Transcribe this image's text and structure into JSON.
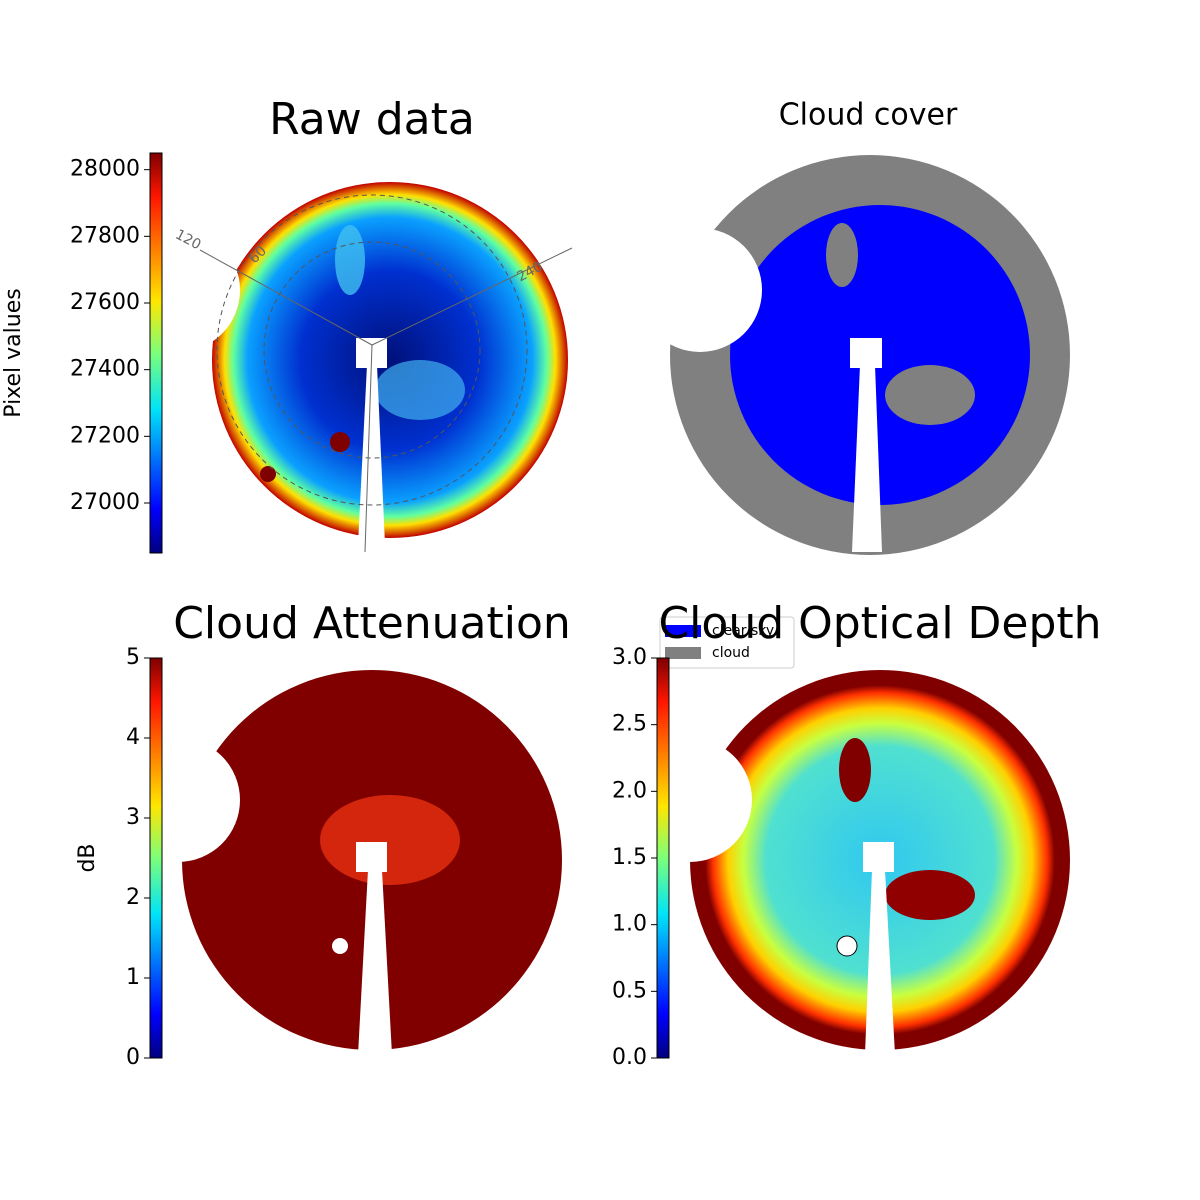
{
  "chart_data": [
    {
      "type": "image",
      "title": "Raw data",
      "ylabel": "Pixel values",
      "colormap": "jet",
      "ylim": [
        26850,
        28050
      ],
      "yticks": [
        27000,
        27200,
        27400,
        27600,
        27800,
        28000
      ],
      "annotations": [
        "120",
        "60",
        "240"
      ]
    },
    {
      "type": "image",
      "title": "Cloud cover",
      "legend": [
        {
          "name": "clear sky",
          "color": "#0000ff"
        },
        {
          "name": "cloud",
          "color": "#808080"
        }
      ]
    },
    {
      "type": "image",
      "title": "Cloud Attenuation",
      "ylabel": "dB",
      "colormap": "jet",
      "ylim": [
        0,
        5
      ],
      "yticks": [
        0,
        1,
        2,
        3,
        4,
        5
      ]
    },
    {
      "type": "image",
      "title": "Cloud Optical Depth",
      "colormap": "jet",
      "ylim": [
        0,
        3
      ],
      "yticks": [
        {
          "value": 0,
          "label": "0.0"
        },
        {
          "value": 0.5,
          "label": "0.5"
        },
        {
          "value": 1,
          "label": "1.0"
        },
        {
          "value": 1.5,
          "label": "1.5"
        },
        {
          "value": 2,
          "label": "2.0"
        },
        {
          "value": 2.5,
          "label": "2.5"
        },
        {
          "value": 3,
          "label": "3.0"
        }
      ]
    }
  ]
}
